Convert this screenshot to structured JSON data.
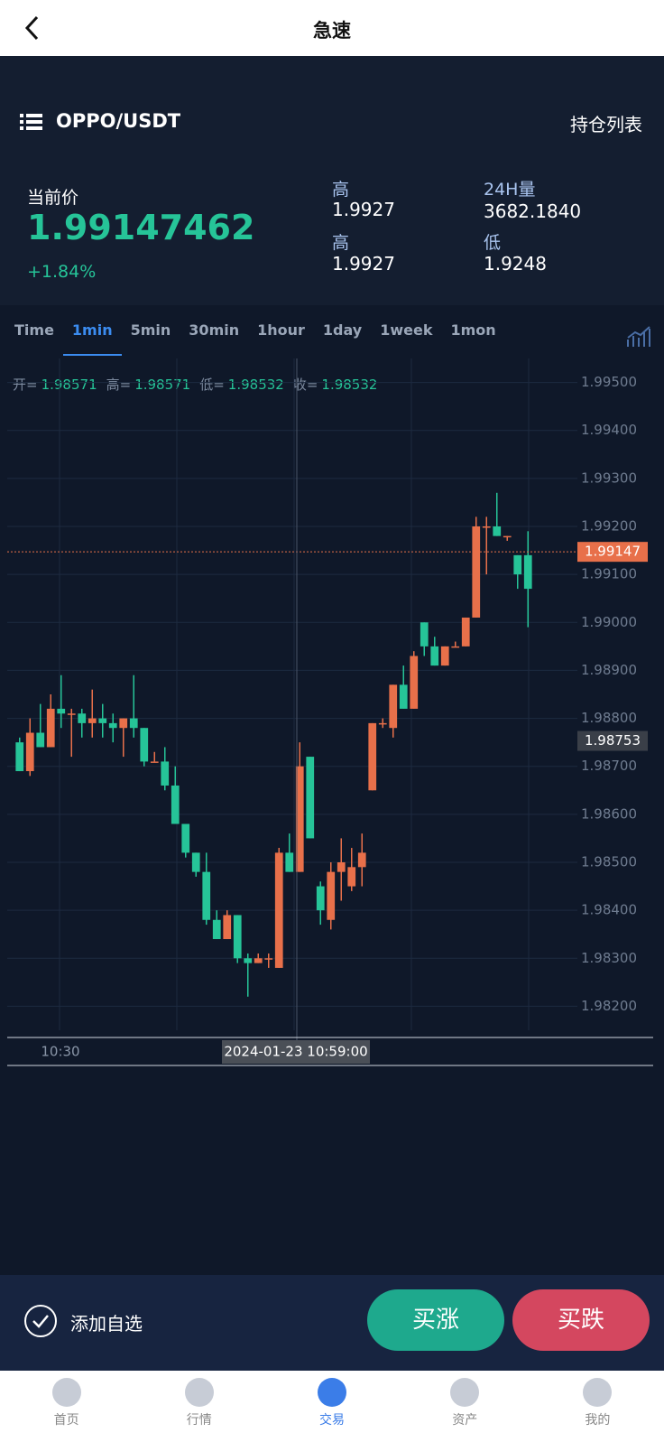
{
  "header": {
    "title": "急速"
  },
  "ticker": {
    "symbol": "OPPO/USDT",
    "positions": "持仓列表"
  },
  "stats": {
    "price_label": "当前价",
    "price": "1.99147462",
    "change": "+1.84%",
    "items": [
      {
        "label": "高",
        "value": "1.9927"
      },
      {
        "label": "24H量",
        "value": "3682.1840"
      },
      {
        "label": "高",
        "value": "1.9927"
      },
      {
        "label": "低",
        "value": "1.9248"
      }
    ]
  },
  "tabs": [
    "Time",
    "1min",
    "5min",
    "30min",
    "1hour",
    "1day",
    "1week",
    "1mon"
  ],
  "ohlc": [
    {
      "label": "开=",
      "value": "1.98571"
    },
    {
      "label": "高=",
      "value": "1.98571"
    },
    {
      "label": "低=",
      "value": "1.98532"
    },
    {
      "label": "收=",
      "value": "1.98532"
    }
  ],
  "chart_data": {
    "type": "candlestick",
    "up_color": "#e8704a",
    "down_color": "#26c498",
    "open": [
      1.9875,
      1.9869,
      1.9877,
      1.9874,
      1.9882,
      1.9881,
      1.9881,
      1.9879,
      1.988,
      1.9879,
      1.9878,
      1.988,
      1.9878,
      1.9871,
      1.9871,
      1.9866,
      1.9858,
      1.9852,
      1.9848,
      1.9838,
      1.9834,
      1.9839,
      1.983,
      1.9829,
      1.983,
      1.9828,
      1.9852,
      1.9848,
      1.9872,
      1.9845,
      1.9838,
      1.9848,
      1.9845,
      1.9849,
      1.9865,
      1.9879,
      1.9878,
      1.9887,
      1.9882,
      1.99,
      1.9895,
      1.9891,
      1.9895,
      1.9895,
      1.9901,
      1.992,
      1.992,
      1.9918,
      1.9914,
      1.9914
    ],
    "high": [
      1.9876,
      1.988,
      1.9883,
      1.9885,
      1.9889,
      1.9882,
      1.9882,
      1.9886,
      1.9883,
      1.9881,
      1.988,
      1.9889,
      1.9878,
      1.9873,
      1.9874,
      1.987,
      1.9858,
      1.9852,
      1.9852,
      1.984,
      1.984,
      1.9839,
      1.9831,
      1.9831,
      1.9831,
      1.9853,
      1.9856,
      1.9875,
      1.9872,
      1.9846,
      1.985,
      1.9855,
      1.9853,
      1.9856,
      1.9879,
      1.988,
      1.9887,
      1.9891,
      1.9894,
      1.99,
      1.9897,
      1.9895,
      1.9896,
      1.9901,
      1.9922,
      1.9922,
      1.9927,
      1.9918,
      1.9914,
      1.9919
    ],
    "low": [
      1.9869,
      1.9868,
      1.9874,
      1.9874,
      1.9878,
      1.9872,
      1.9876,
      1.9876,
      1.9876,
      1.9875,
      1.9872,
      1.9876,
      1.987,
      1.9871,
      1.9865,
      1.9858,
      1.9851,
      1.9847,
      1.9837,
      1.9834,
      1.9834,
      1.9829,
      1.9822,
      1.9829,
      1.9828,
      1.9828,
      1.9848,
      1.9848,
      1.9855,
      1.9837,
      1.9836,
      1.9842,
      1.9844,
      1.9845,
      1.9865,
      1.9878,
      1.9876,
      1.9882,
      1.9882,
      1.9893,
      1.9891,
      1.9891,
      1.9895,
      1.9895,
      1.9901,
      1.991,
      1.9918,
      1.9917,
      1.9907,
      1.9899
    ],
    "close": [
      1.9869,
      1.9877,
      1.9874,
      1.9882,
      1.9881,
      1.9881,
      1.9879,
      1.988,
      1.9879,
      1.9878,
      1.988,
      1.9878,
      1.9871,
      1.9871,
      1.9866,
      1.9858,
      1.9852,
      1.9848,
      1.9838,
      1.9834,
      1.9839,
      1.983,
      1.9829,
      1.983,
      1.983,
      1.9852,
      1.9848,
      1.987,
      1.9855,
      1.984,
      1.9848,
      1.985,
      1.9849,
      1.9852,
      1.9879,
      1.9879,
      1.9887,
      1.9882,
      1.9893,
      1.9895,
      1.9891,
      1.9895,
      1.9895,
      1.9901,
      1.992,
      1.992,
      1.9918,
      1.9918,
      1.991,
      1.9907
    ],
    "ylim": [
      1.9815,
      1.9955
    ],
    "yticks": [
      {
        "value": 1.995,
        "label": "1.99500"
      },
      {
        "value": 1.994,
        "label": "1.99400"
      },
      {
        "value": 1.993,
        "label": "1.99300"
      },
      {
        "value": 1.992,
        "label": "1.99200"
      },
      {
        "value": 1.991,
        "label": "1.99100"
      },
      {
        "value": 1.99,
        "label": "1.99000"
      },
      {
        "value": 1.989,
        "label": "1.98900"
      },
      {
        "value": 1.988,
        "label": "1.98800"
      },
      {
        "value": 1.987,
        "label": "1.98700"
      },
      {
        "value": 1.986,
        "label": "1.98600"
      },
      {
        "value": 1.985,
        "label": "1.98500"
      },
      {
        "value": 1.984,
        "label": "1.98400"
      },
      {
        "value": 1.983,
        "label": "1.98300"
      },
      {
        "value": 1.982,
        "label": "1.98200"
      }
    ],
    "last_price": {
      "value": 1.99147,
      "label": "1.99147"
    },
    "crosshair_price": {
      "value": 1.98753,
      "label": "1.98753"
    },
    "xtick": "10:30",
    "crosshair_time": "2024-01-23 10:59:00",
    "grid": true
  },
  "actions": {
    "watch": "添加自选",
    "buy_up": "买涨",
    "buy_down": "买跌"
  },
  "nav": [
    "首页",
    "行情",
    "交易",
    "资产",
    "我的"
  ]
}
